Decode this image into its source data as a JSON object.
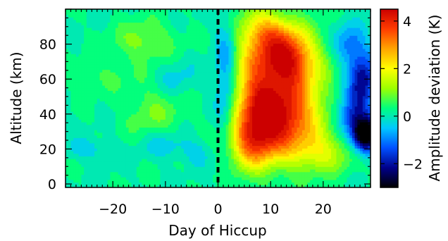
{
  "chart_data": {
    "type": "heatmap",
    "title": "",
    "xlabel": "Day of Hiccup",
    "ylabel": "Altitude (km)",
    "colorbar_label": "Amplitude deviation (K)",
    "xlim": [
      -29,
      29
    ],
    "ylim": [
      -2,
      100
    ],
    "clim": [
      -3,
      4.5
    ],
    "x_ticks": [
      -20,
      -10,
      0,
      10,
      20
    ],
    "x_tick_labels": [
      "−20",
      "−10",
      "0",
      "10",
      "20"
    ],
    "y_ticks": [
      0,
      20,
      40,
      60,
      80
    ],
    "y_tick_labels": [
      "0",
      "20",
      "40",
      "60",
      "80"
    ],
    "colorbar_ticks": [
      -2,
      0,
      2,
      4
    ],
    "colorbar_tick_labels": [
      "−2",
      "0",
      "2",
      "4"
    ],
    "reference_line": {
      "x": 0,
      "style": "dashed",
      "color": "#000000"
    },
    "colormap": [
      "#000000",
      "#00008b",
      "#0050ff",
      "#00c8ff",
      "#00ff7f",
      "#9cff00",
      "#ffff00",
      "#ffa500",
      "#ff3c00",
      "#cc0000"
    ],
    "grid": false,
    "features": [
      {
        "x": 11,
        "y": 37,
        "sx": 4.5,
        "sy": 15,
        "amp": 3.6
      },
      {
        "x": 13,
        "y": 73,
        "sx": 3.6,
        "sy": 12,
        "amp": 3.7
      },
      {
        "x": 7,
        "y": 55,
        "sx": 3,
        "sy": 25,
        "amp": 2.2
      },
      {
        "x": 16,
        "y": 48,
        "sx": 4,
        "sy": 20,
        "amp": 1.2
      },
      {
        "x": 6,
        "y": 22,
        "sx": 3,
        "sy": 9,
        "amp": 1.6
      },
      {
        "x": 20,
        "y": 18,
        "sx": 4,
        "sy": 8,
        "amp": 1.3
      },
      {
        "x": 9,
        "y": 88,
        "sx": 3,
        "sy": 8,
        "amp": 1.4
      },
      {
        "x": 1.5,
        "y": 60,
        "sx": 1.5,
        "sy": 25,
        "amp": -1.2
      },
      {
        "x": 28,
        "y": 28,
        "sx": 1.8,
        "sy": 7,
        "amp": -3.8
      },
      {
        "x": 27.5,
        "y": 58,
        "sx": 1.8,
        "sy": 12,
        "amp": -2.4
      },
      {
        "x": 25,
        "y": 80,
        "sx": 2,
        "sy": 8,
        "amp": -1.2
      },
      {
        "x": 25,
        "y": 40,
        "sx": 2,
        "sy": 8,
        "amp": -1.4
      },
      {
        "x": -14,
        "y": 82,
        "sx": 4,
        "sy": 8,
        "amp": 0.9
      },
      {
        "x": -12,
        "y": 42,
        "sx": 4,
        "sy": 10,
        "amp": 0.7
      },
      {
        "x": -22,
        "y": 62,
        "sx": 5,
        "sy": 6,
        "amp": 0.4
      },
      {
        "x": -25,
        "y": 20,
        "sx": 3,
        "sy": 4,
        "amp": -0.6
      },
      {
        "x": -10,
        "y": 22,
        "sx": 3,
        "sy": 5,
        "amp": -0.6
      },
      {
        "x": -4,
        "y": 18,
        "sx": 2,
        "sy": 5,
        "amp": -0.5
      },
      {
        "x": -8,
        "y": 60,
        "sx": 2.5,
        "sy": 8,
        "amp": -0.5
      }
    ]
  }
}
